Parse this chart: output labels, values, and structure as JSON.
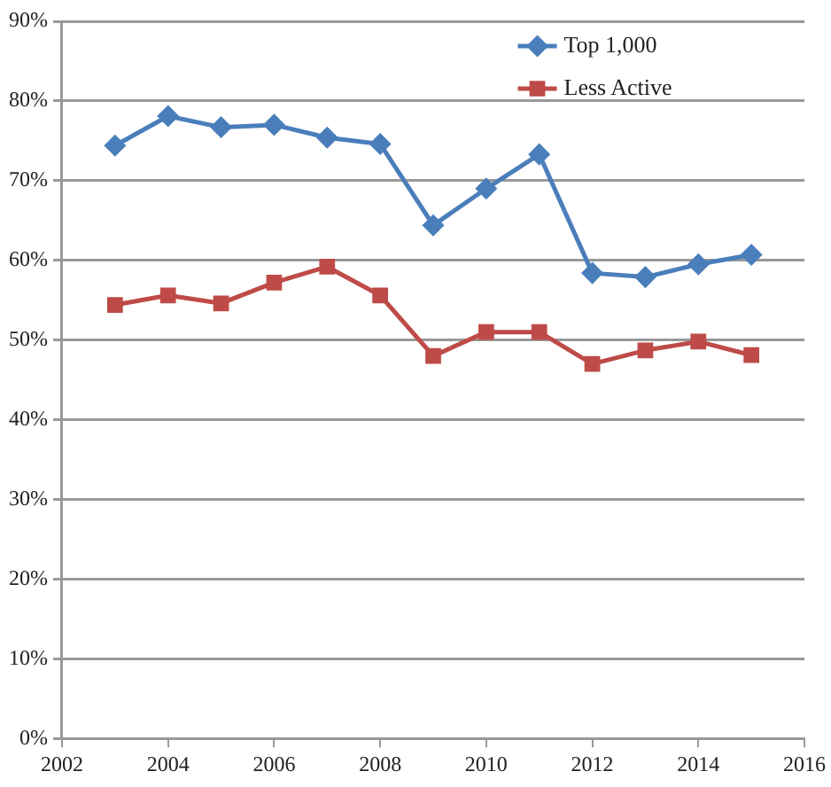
{
  "chart_data": {
    "type": "line",
    "x": [
      2003,
      2004,
      2005,
      2006,
      2007,
      2008,
      2009,
      2010,
      2011,
      2012,
      2013,
      2014,
      2015
    ],
    "series": [
      {
        "name": "Top 1,000",
        "color": "#4a7ebb",
        "marker": "diamond",
        "values": [
          74.4,
          78.1,
          76.7,
          77.0,
          75.4,
          74.6,
          64.4,
          69.0,
          73.3,
          58.4,
          57.9,
          59.5,
          60.7
        ]
      },
      {
        "name": "Less Active",
        "color": "#be4b48",
        "marker": "square",
        "values": [
          54.4,
          55.6,
          54.6,
          57.2,
          59.2,
          55.6,
          48.0,
          51.0,
          51.0,
          47.0,
          48.7,
          49.8,
          48.1
        ]
      }
    ],
    "xlim": [
      2002,
      2016
    ],
    "xticks": [
      2002,
      2004,
      2006,
      2008,
      2010,
      2012,
      2014,
      2016
    ],
    "ylim": [
      0,
      90
    ],
    "yticks": [
      {
        "value": 0,
        "label": "0%"
      },
      {
        "value": 10,
        "label": "10%"
      },
      {
        "value": 20,
        "label": "20%"
      },
      {
        "value": 30,
        "label": "30%"
      },
      {
        "value": 40,
        "label": "40%"
      },
      {
        "value": 50,
        "label": "50%"
      },
      {
        "value": 60,
        "label": "60%"
      },
      {
        "value": 70,
        "label": "70%"
      },
      {
        "value": 80,
        "label": "80%"
      },
      {
        "value": 90,
        "label": "90%"
      }
    ],
    "grid": "y",
    "legend": "top right",
    "line_style": "solid"
  }
}
